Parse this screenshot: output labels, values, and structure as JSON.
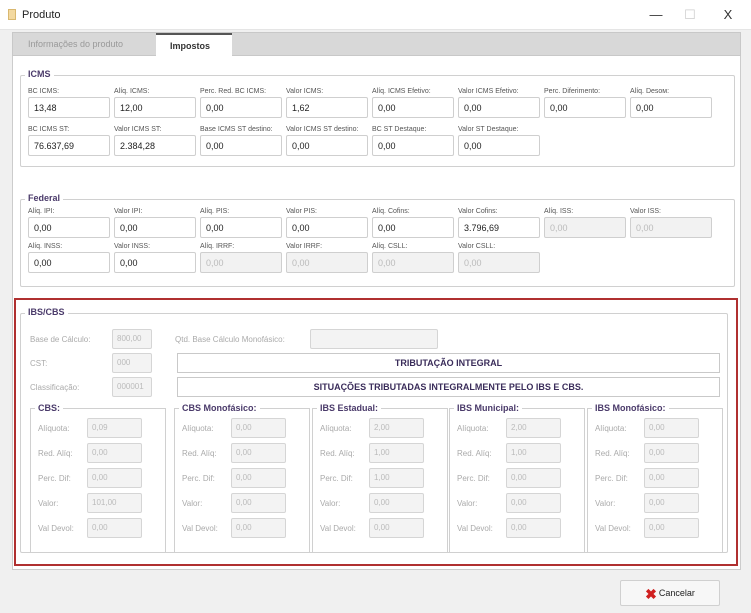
{
  "window": {
    "title": "Produto",
    "minimize": "—",
    "maximize": "☐",
    "close": "X"
  },
  "tabs": [
    {
      "label": "Informações do produto",
      "active": false
    },
    {
      "label": "Impostos",
      "active": true
    }
  ],
  "icms": {
    "title": "ICMS",
    "row1": [
      {
        "label": "BC ICMS:",
        "value": "13,48",
        "disabled": false
      },
      {
        "label": "Alíq. ICMS:",
        "value": "12,00",
        "disabled": false
      },
      {
        "label": "Perc. Red. BC ICMS:",
        "value": "0,00",
        "disabled": false
      },
      {
        "label": "Valor ICMS:",
        "value": "1,62",
        "disabled": false
      },
      {
        "label": "Alíq. ICMS Efetivo:",
        "value": "0,00",
        "disabled": false
      },
      {
        "label": "Valor ICMS Efetivo:",
        "value": "0,00",
        "disabled": false
      },
      {
        "label": "Perc. Diferimento:",
        "value": "0,00",
        "disabled": false
      },
      {
        "label": "Alíq. Desом:",
        "value": "0,00",
        "disabled": false
      }
    ],
    "row2": [
      {
        "label": "BC ICMS ST:",
        "value": "76.637,69",
        "disabled": false
      },
      {
        "label": "Valor ICMS ST:",
        "value": "2.384,28",
        "disabled": false
      },
      {
        "label": "Base ICMS ST destino:",
        "value": "0,00",
        "disabled": false
      },
      {
        "label": "Valor ICMS ST destino:",
        "value": "0,00",
        "disabled": false
      },
      {
        "label": "BC ST Destaque:",
        "value": "0,00",
        "disabled": false
      },
      {
        "label": "Valor ST Destaque:",
        "value": "0,00",
        "disabled": false
      }
    ]
  },
  "federal": {
    "title": "Federal",
    "row1": [
      {
        "label": "Alíq. IPI:",
        "value": "0,00",
        "disabled": false
      },
      {
        "label": "Valor IPI:",
        "value": "0,00",
        "disabled": false
      },
      {
        "label": "Alíq. PIS:",
        "value": "0,00",
        "disabled": false
      },
      {
        "label": "Valor PIS:",
        "value": "0,00",
        "disabled": false
      },
      {
        "label": "Alíq. Cofins:",
        "value": "0,00",
        "disabled": false
      },
      {
        "label": "Valor Cofins:",
        "value": "3.796,69",
        "disabled": false
      },
      {
        "label": "Alíq. ISS:",
        "value": "0,00",
        "disabled": true
      },
      {
        "label": "Valor ISS:",
        "value": "0,00",
        "disabled": true
      }
    ],
    "row2": [
      {
        "label": "Alíq. INSS:",
        "value": "0,00",
        "disabled": false
      },
      {
        "label": "Valor INSS:",
        "value": "0,00",
        "disabled": false
      },
      {
        "label": "Alíq. IRRF:",
        "value": "0,00",
        "disabled": true
      },
      {
        "label": "Valor IRRF:",
        "value": "0,00",
        "disabled": true
      },
      {
        "label": "Alíq. CSLL:",
        "value": "0,00",
        "disabled": true
      },
      {
        "label": "Valor CSLL:",
        "value": "0,00",
        "disabled": true
      }
    ]
  },
  "ibscbs": {
    "title": "IBS/CBS",
    "base_label": "Base de Cálculo:",
    "base_value": "800,00",
    "qtd_label": "Qtd. Base Cálculo Monofásico:",
    "qtd_value": "",
    "cst_label": "CST:",
    "cst_value": "000",
    "cst_desc": "TRIBUTAÇÃO INTEGRAL",
    "class_label": "Classificação:",
    "class_value": "000001",
    "class_desc": "SITUAÇÕES TRIBUTADAS INTEGRALMENTE PELO IBS E CBS.",
    "field_labels": [
      "Alíquota:",
      "Red. Alíq:",
      "Perc. Dif:",
      "Valor:",
      "Val Devol:"
    ],
    "groups": [
      {
        "title": "CBS:",
        "values": [
          "0,09",
          "0,00",
          "0,00",
          "101,00",
          "0,00"
        ]
      },
      {
        "title": "CBS Monofásico:",
        "values": [
          "0,00",
          "0,00",
          "0,00",
          "0,00",
          "0,00"
        ]
      },
      {
        "title": "IBS Estadual:",
        "values": [
          "2,00",
          "1,00",
          "1,00",
          "0,00",
          "0,00"
        ]
      },
      {
        "title": "IBS Municipal:",
        "values": [
          "2,00",
          "1,00",
          "0,00",
          "0,00",
          "0,00"
        ]
      },
      {
        "title": "IBS Monofásico:",
        "values": [
          "0,00",
          "0,00",
          "0,00",
          "0,00",
          "0,00"
        ]
      }
    ]
  },
  "footer": {
    "cancel_label": "Cancelar"
  }
}
